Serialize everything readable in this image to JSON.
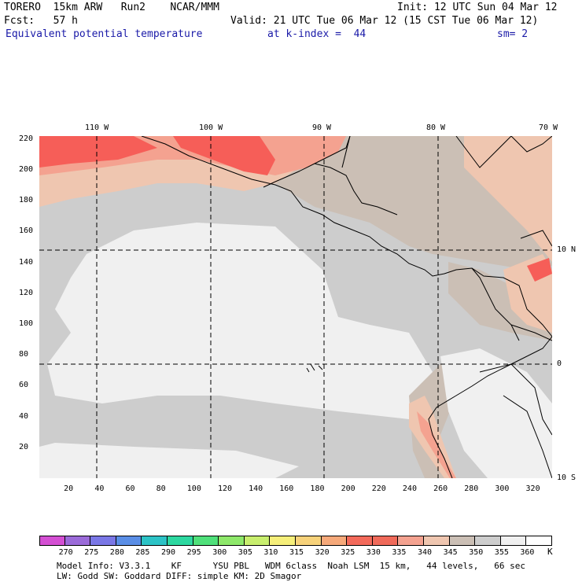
{
  "header": {
    "line1_left": "TORERO  15km ARW   Run2    NCAR/MMM",
    "line1_right": "Init: 12 UTC Sun 04 Mar 12",
    "line2_left": "Fcst:   57 h",
    "line2_right": "Valid: 21 UTC Tue 06 Mar 12 (15 CST Tue 06 Mar 12)",
    "line3_left": "Equivalent potential temperature",
    "line3_mid": "at k-index =  44",
    "line3_right": "sm= 2"
  },
  "map": {
    "top_lon_labels": [
      "110 W",
      "100 W",
      "90 W",
      "80 W",
      "70 W"
    ],
    "right_lat_labels": [
      "10 N",
      "0",
      "10 S"
    ],
    "y_ticks": [
      20,
      40,
      60,
      80,
      100,
      120,
      140,
      160,
      180,
      200,
      220
    ],
    "x_ticks": [
      20,
      40,
      60,
      80,
      100,
      120,
      140,
      160,
      180,
      200,
      220,
      240,
      260,
      280,
      300,
      320
    ],
    "x_range": [
      0,
      333
    ],
    "y_range": [
      0,
      222
    ],
    "grid_lines_x": [
      38,
      112,
      185,
      258
    ],
    "grid_lines_y": [
      75,
      149
    ],
    "colors": {
      "c355": "#f0f0f0",
      "c350": "#cdcdcd",
      "c345": "#cbbfb5",
      "c340": "#efc6b0",
      "c335": "#f4a290",
      "c330": "#f65e58",
      "c325": "#f07a60"
    }
  },
  "colorbar": {
    "labels": [
      "270",
      "275",
      "280",
      "285",
      "290",
      "295",
      "300",
      "305",
      "310",
      "315",
      "320",
      "325",
      "330",
      "335",
      "340",
      "345",
      "350",
      "355",
      "360"
    ],
    "unit": "K",
    "colors": [
      "#d44fd3",
      "#9b6bd9",
      "#7a77e6",
      "#5a8ee6",
      "#2cc3c6",
      "#2dd8a0",
      "#4fe07a",
      "#8ee86a",
      "#c8ee6e",
      "#f6ef7a",
      "#f7d27a",
      "#f6a97a",
      "#f36a5b",
      "#f06a5a",
      "#f4a290",
      "#efc6b0",
      "#cbbfb5",
      "#cdcdcd",
      "#f0f0f0",
      "#ffffff"
    ]
  },
  "footer": {
    "line1": "Model Info: V3.3.1    KF      YSU PBL   WDM 6class  Noah LSM  15 km,   44 levels,   66 sec",
    "line2": "LW: Godd SW: Goddard DIFF: simple KM: 2D Smagor"
  }
}
